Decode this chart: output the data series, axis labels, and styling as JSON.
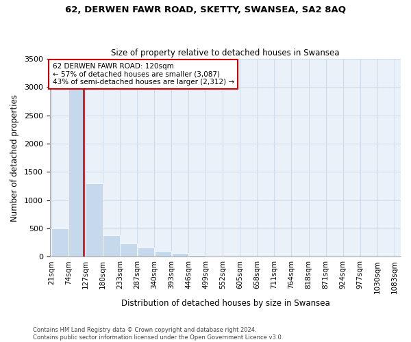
{
  "title1": "62, DERWEN FAWR ROAD, SKETTY, SWANSEA, SA2 8AQ",
  "title2": "Size of property relative to detached houses in Swansea",
  "xlabel": "Distribution of detached houses by size in Swansea",
  "ylabel": "Number of detached properties",
  "footer": "Contains HM Land Registry data © Crown copyright and database right 2024.\nContains public sector information licensed under the Open Government Licence v3.0.",
  "property_size": 120,
  "annotation_line1": "62 DERWEN FAWR ROAD: 120sqm",
  "annotation_line2": "← 57% of detached houses are smaller (3,087)",
  "annotation_line3": "43% of semi-detached houses are larger (2,312) →",
  "bar_edges": [
    21,
    74,
    127,
    180,
    233,
    287,
    340,
    393,
    446,
    499,
    552,
    605,
    658,
    711,
    764,
    818,
    871,
    924,
    977,
    1030,
    1083
  ],
  "bar_labels": [
    "21sqm",
    "74sqm",
    "127sqm",
    "180sqm",
    "233sqm",
    "287sqm",
    "340sqm",
    "393sqm",
    "446sqm",
    "499sqm",
    "552sqm",
    "605sqm",
    "658sqm",
    "711sqm",
    "764sqm",
    "818sqm",
    "871sqm",
    "924sqm",
    "977sqm",
    "1030sqm",
    "1083sqm"
  ],
  "bar_values": [
    500,
    3050,
    1300,
    380,
    230,
    155,
    100,
    60,
    30,
    15,
    8,
    5,
    3,
    2,
    1,
    1,
    0,
    0,
    0,
    0
  ],
  "bar_color": "#c5d8ec",
  "property_line_color": "#cc0000",
  "annotation_box_color": "#cc0000",
  "grid_color": "#d0dce8",
  "ylim": [
    0,
    3500
  ],
  "yticks": [
    0,
    500,
    1000,
    1500,
    2000,
    2500,
    3000,
    3500
  ]
}
